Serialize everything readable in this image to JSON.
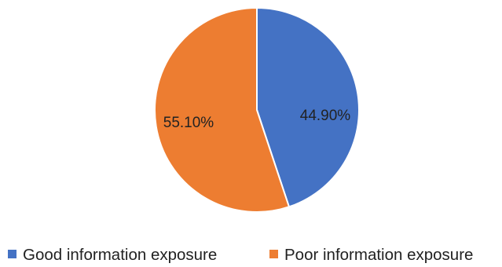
{
  "chart_data": {
    "type": "pie",
    "categories": [
      "Good information exposure",
      "Poor information exposure"
    ],
    "values": [
      44.9,
      55.1
    ],
    "data_labels": [
      "44.90%",
      "55.10%"
    ],
    "colors": [
      "#4472C4",
      "#ED7D31"
    ],
    "start_angle_deg": 0,
    "direction": "clockwise",
    "legend": {
      "position": "bottom",
      "items": [
        {
          "label": "Good information exposure",
          "color": "#4472C4"
        },
        {
          "label": "Poor information exposure",
          "color": "#ED7D31"
        }
      ]
    }
  }
}
